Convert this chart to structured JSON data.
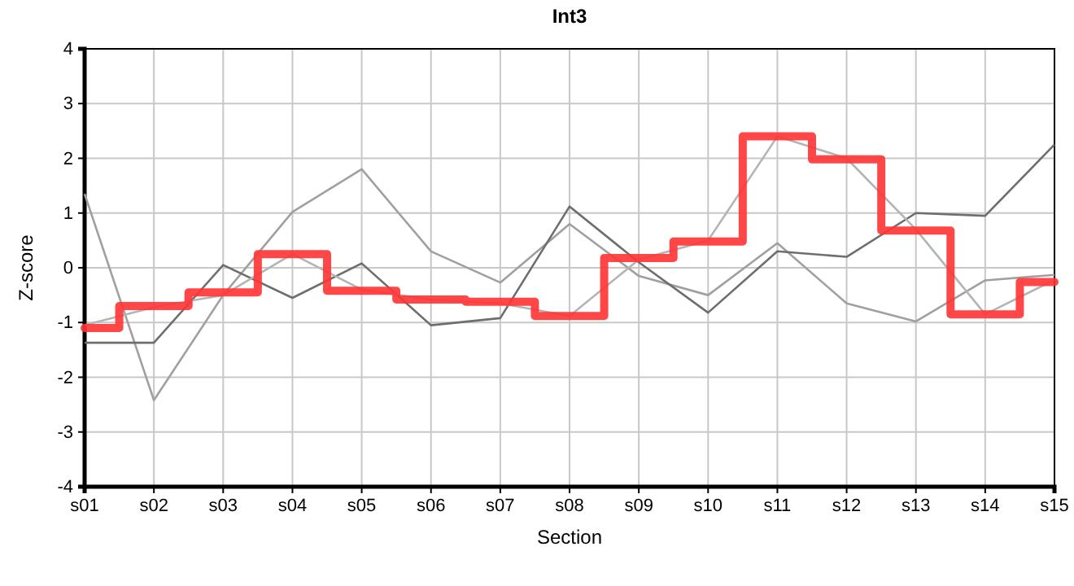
{
  "chart_data": {
    "type": "line",
    "title": "Int3",
    "xlabel": "Section",
    "ylabel": "Z-score",
    "categories": [
      "s01",
      "s02",
      "s03",
      "s04",
      "s05",
      "s06",
      "s07",
      "s08",
      "s09",
      "s10",
      "s11",
      "s12",
      "s13",
      "s14",
      "s15"
    ],
    "series": [
      {
        "color": "#a0a0a0",
        "values": [
          1.35,
          -2.42,
          -0.5,
          1.02,
          1.8,
          0.3,
          -0.27,
          0.8,
          -0.15,
          -0.5,
          0.45,
          -0.65,
          -0.98,
          -0.23,
          -0.13
        ]
      },
      {
        "color": "#6e6e6e",
        "values": [
          -1.37,
          -1.37,
          0.05,
          -0.55,
          0.08,
          -1.05,
          -0.92,
          1.12,
          0.1,
          -0.82,
          0.3,
          0.2,
          1.0,
          0.95,
          2.25
        ]
      },
      {
        "color": "#b4b4b4",
        "values": [
          -1.05,
          -0.72,
          -0.5,
          0.25,
          -0.4,
          -0.58,
          -0.65,
          -0.88,
          0.15,
          0.5,
          2.4,
          2.0,
          0.7,
          -0.85,
          -0.22
        ]
      },
      {
        "type": "step",
        "color": "#ff3333",
        "values": [
          -1.1,
          -0.7,
          -0.45,
          0.25,
          -0.42,
          -0.58,
          -0.62,
          -0.88,
          0.18,
          0.48,
          2.4,
          1.98,
          0.68,
          -0.85,
          -0.26
        ]
      }
    ],
    "ylim": [
      -4,
      4
    ],
    "yticks": [
      -4,
      -3,
      -2,
      -1,
      0,
      1,
      2,
      3,
      4
    ],
    "grid": true
  }
}
